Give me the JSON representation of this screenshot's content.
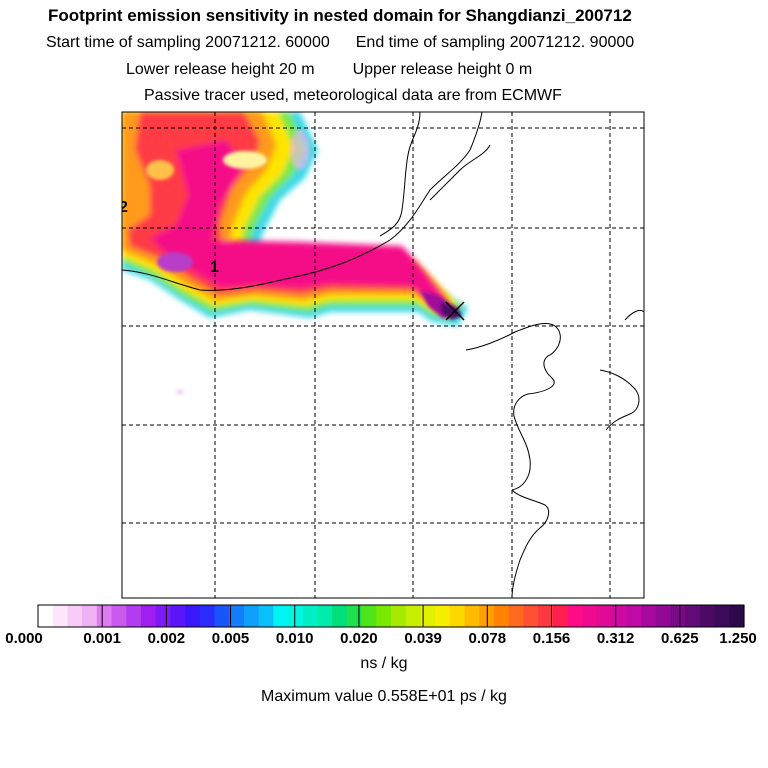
{
  "header": {
    "title": "Footprint emission sensitivity in nested domain for Shangdianzi_200712",
    "start_label": "Start time of sampling 20071212. 60000",
    "end_label": "End time of sampling 20071212. 90000",
    "lower_label": "Lower release height   20 m",
    "upper_label": "Upper release height    0 m",
    "tracer_label": "Passive tracer used, meteorological data are from ECMWF"
  },
  "map": {
    "contour_labels": [
      "2",
      "1"
    ],
    "receptor_marker": "x-mark"
  },
  "colorbar": {
    "tick_labels": [
      "0.000",
      "0.001",
      "0.002",
      "0.005",
      "0.010",
      "0.020",
      "0.039",
      "0.078",
      "0.156",
      "0.312",
      "0.625",
      "1.250"
    ],
    "unit": "ns / kg",
    "colors": [
      "#ffffff",
      "#fce6fc",
      "#f7cdf7",
      "#eeb1f4",
      "#dd7cf0",
      "#c95af0",
      "#b43cf0",
      "#a01ef0",
      "#7d1af5",
      "#5a16f8",
      "#3a18fa",
      "#2a2cfb",
      "#1a55fb",
      "#137dfb",
      "#0ea0fb",
      "#09c0fb",
      "#00f4f4",
      "#00f5e0",
      "#00f0c6",
      "#00ecac",
      "#00e07a",
      "#1fe04d",
      "#50e51a",
      "#7ae800",
      "#a5ea00",
      "#c6ee00",
      "#e3f000",
      "#f7ee00",
      "#ffd800",
      "#ffbb00",
      "#ff9f00",
      "#ff8300",
      "#ff6a1f",
      "#ff5035",
      "#ff3842",
      "#ff2050",
      "#ff0b86",
      "#f00a90",
      "#e00a98",
      "#cf0aa0",
      "#c00aa5",
      "#a80aa0",
      "#900a96",
      "#780a86",
      "#620a76",
      "#4c0a66",
      "#3b0a58",
      "#2c0a4a"
    ]
  },
  "footer": {
    "max_value": "Maximum value  0.558E+01 ps / kg"
  }
}
